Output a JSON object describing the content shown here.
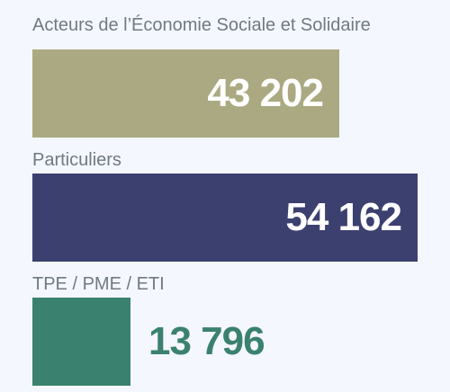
{
  "chart_data": {
    "type": "bar",
    "orientation": "horizontal",
    "categories": [
      "Acteurs de l’Économie Sociale et Solidaire",
      "Particuliers",
      "TPE / PME / ETI"
    ],
    "values": [
      43202,
      54162,
      13796
    ],
    "value_labels": [
      "43 202",
      "54 162",
      "13 796"
    ],
    "colors": [
      "#aba981",
      "#3b406f",
      "#3b8170"
    ],
    "xlim": [
      0,
      54162
    ],
    "grid": false,
    "legend": "none"
  }
}
